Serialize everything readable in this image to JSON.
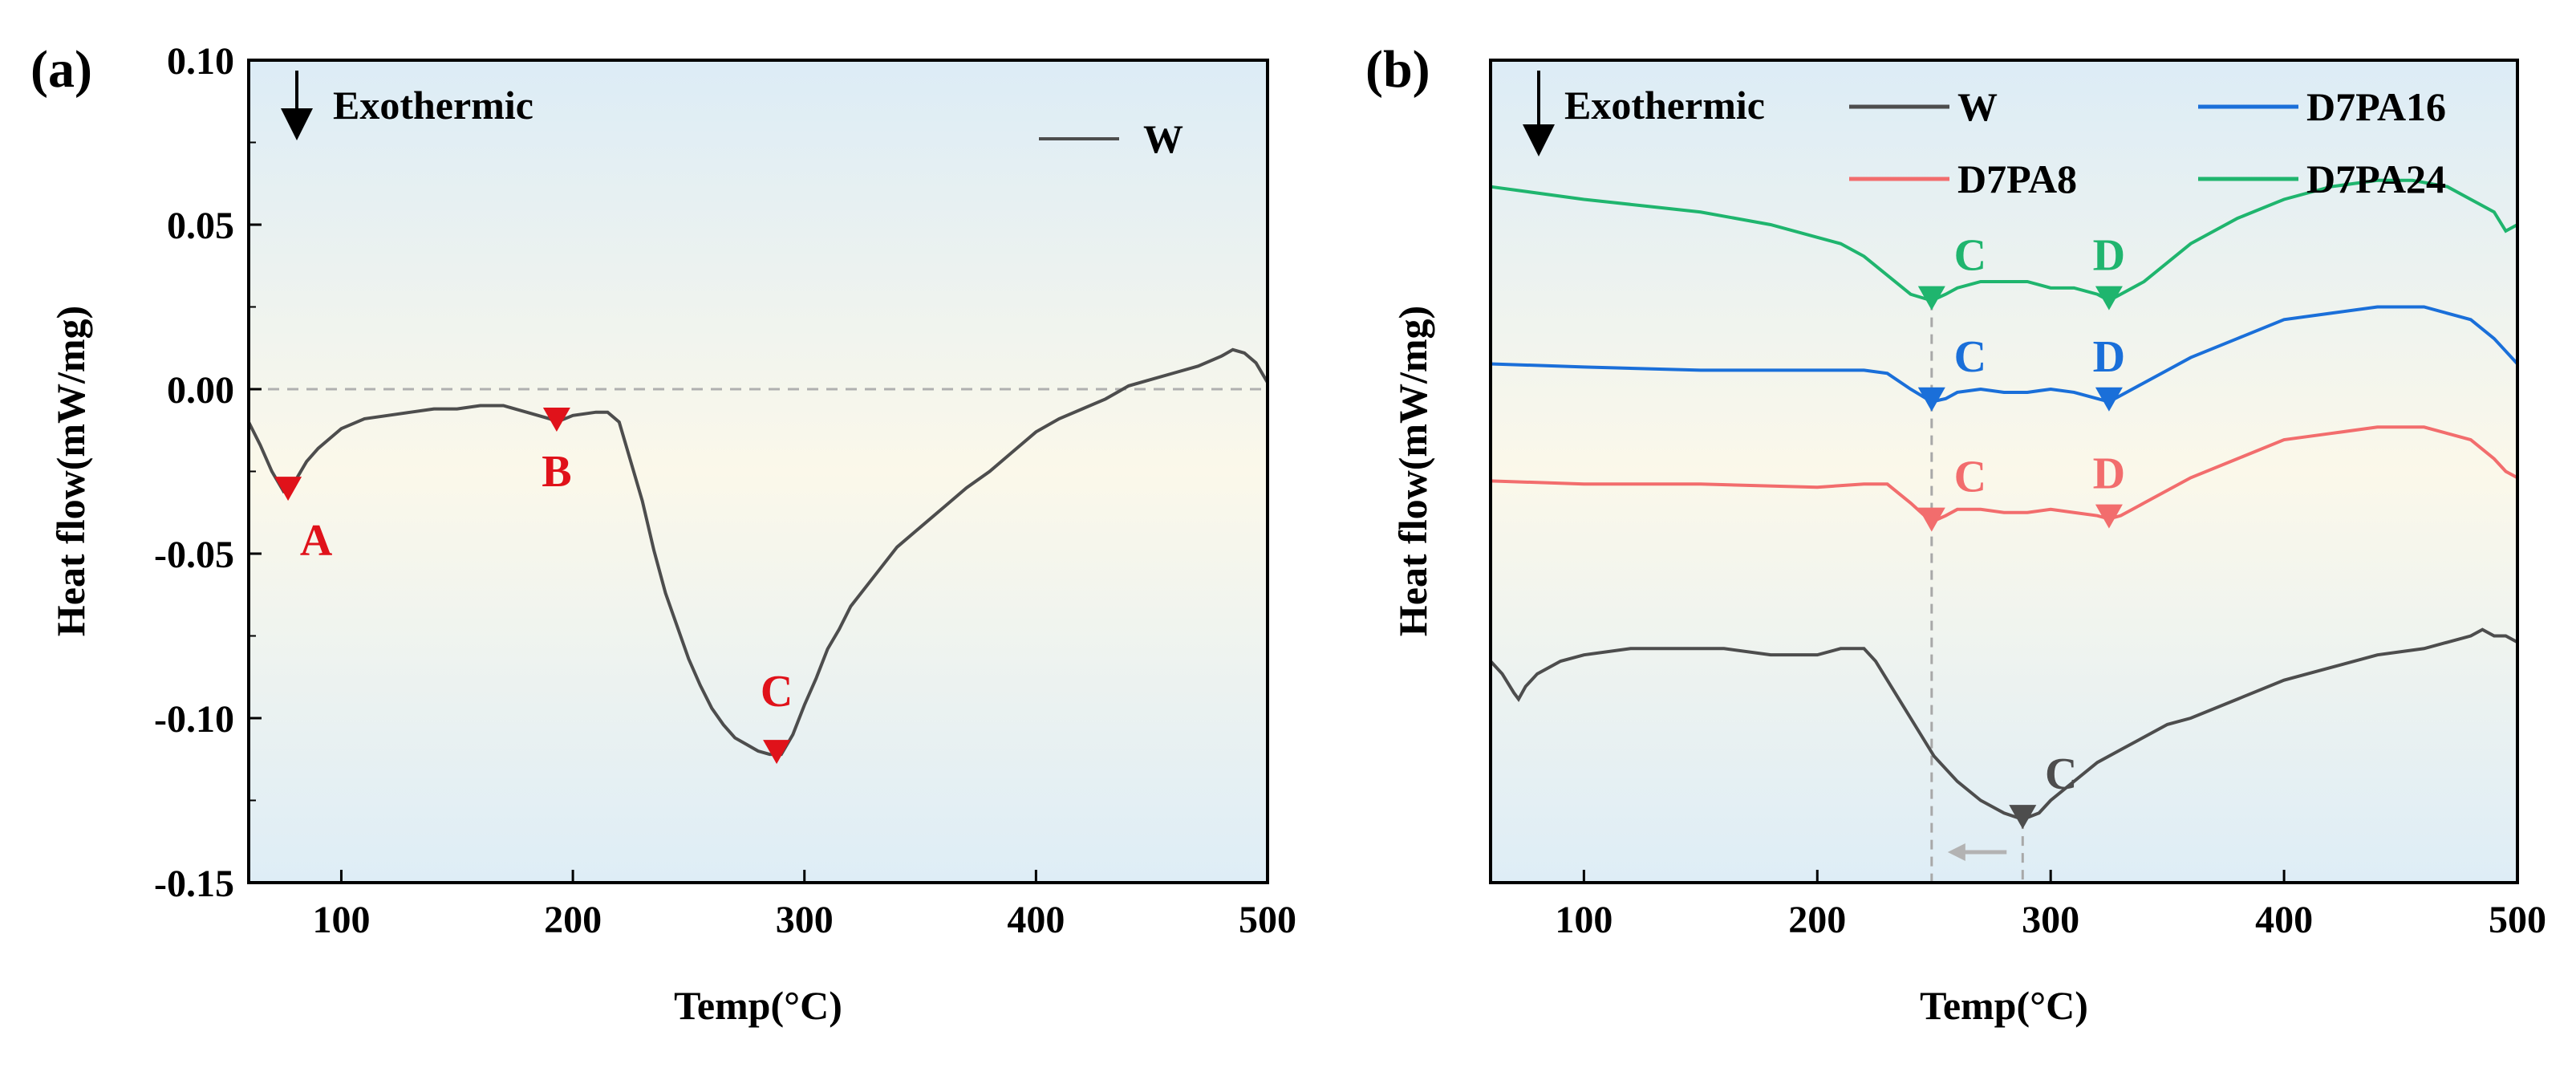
{
  "colors": {
    "W": "#4d4d4d",
    "D7PA8": "#f26d6d",
    "D7PA16": "#1a6fd9",
    "D7PA24": "#1fb56e",
    "peak_marker_a": "#e0121a",
    "shift_arrow": "#b3b3b3"
  },
  "chart_data": [
    {
      "panel_label": "(a)",
      "type": "line",
      "xlabel": "Temp(°C)",
      "ylabel": "Heat flow(mW/mg)",
      "xlim": [
        60,
        500
      ],
      "ylim": [
        -0.15,
        0.1
      ],
      "xticks": [
        "100",
        "200",
        "300",
        "400",
        "500"
      ],
      "yticks": [
        "0.10",
        "0.05",
        "0.00",
        "-0.05",
        "-0.10",
        "-0.15"
      ],
      "annotation": "Exothermic",
      "reference_line_y": 0.0,
      "legend": "top-right",
      "series": [
        {
          "name": "W",
          "color_key": "W",
          "x": [
            60,
            65,
            70,
            75,
            80,
            85,
            90,
            95,
            100,
            110,
            120,
            130,
            140,
            150,
            160,
            170,
            180,
            190,
            193,
            200,
            210,
            215,
            220,
            225,
            230,
            235,
            240,
            245,
            250,
            255,
            260,
            265,
            270,
            275,
            280,
            285,
            290,
            295,
            300,
            305,
            310,
            315,
            320,
            330,
            340,
            350,
            360,
            370,
            380,
            390,
            400,
            410,
            420,
            430,
            440,
            450,
            460,
            470,
            480,
            485,
            490,
            495,
            500
          ],
          "y": [
            -0.01,
            -0.017,
            -0.025,
            -0.031,
            -0.028,
            -0.022,
            -0.018,
            -0.015,
            -0.012,
            -0.009,
            -0.008,
            -0.007,
            -0.006,
            -0.006,
            -0.005,
            -0.005,
            -0.007,
            -0.009,
            -0.01,
            -0.008,
            -0.007,
            -0.007,
            -0.01,
            -0.022,
            -0.034,
            -0.049,
            -0.062,
            -0.072,
            -0.082,
            -0.09,
            -0.097,
            -0.102,
            -0.106,
            -0.108,
            -0.11,
            -0.111,
            -0.111,
            -0.105,
            -0.096,
            -0.088,
            -0.079,
            -0.073,
            -0.066,
            -0.057,
            -0.048,
            -0.042,
            -0.036,
            -0.03,
            -0.025,
            -0.019,
            -0.013,
            -0.009,
            -0.006,
            -0.003,
            0.001,
            0.003,
            0.005,
            0.007,
            0.01,
            0.012,
            0.011,
            0.008,
            0.002
          ]
        }
      ],
      "peaks": [
        {
          "label": "A",
          "x": 77,
          "y": -0.031
        },
        {
          "label": "B",
          "x": 193,
          "y": -0.01
        },
        {
          "label": "C",
          "x": 288,
          "y": -0.111
        }
      ]
    },
    {
      "panel_label": "(b)",
      "type": "line",
      "xlabel": "Temp(°C)",
      "ylabel": "Heat flow(mW/mg)",
      "xlim": [
        60,
        500
      ],
      "xticks": [
        "100",
        "200",
        "300",
        "400",
        "500"
      ],
      "annotation": "Exothermic",
      "legend": "top-right",
      "shift_arrow": {
        "from_x": 288,
        "to_x": 249
      },
      "series": [
        {
          "name": "W",
          "color_key": "W",
          "x": [
            60,
            65,
            70,
            72,
            75,
            80,
            90,
            100,
            120,
            140,
            160,
            180,
            200,
            210,
            220,
            225,
            230,
            240,
            250,
            260,
            270,
            280,
            288,
            295,
            300,
            310,
            320,
            330,
            340,
            350,
            360,
            380,
            400,
            420,
            440,
            460,
            470,
            480,
            485,
            490,
            495,
            500
          ],
          "y": [
            0.23,
            0.21,
            0.18,
            0.17,
            0.19,
            0.21,
            0.23,
            0.24,
            0.25,
            0.25,
            0.25,
            0.24,
            0.24,
            0.25,
            0.25,
            0.23,
            0.2,
            0.14,
            0.08,
            0.04,
            0.01,
            -0.01,
            -0.02,
            -0.01,
            0.01,
            0.04,
            0.07,
            0.09,
            0.11,
            0.13,
            0.14,
            0.17,
            0.2,
            0.22,
            0.24,
            0.25,
            0.26,
            0.27,
            0.28,
            0.27,
            0.27,
            0.26
          ]
        },
        {
          "name": "D7PA8",
          "color_key": "D7PA8",
          "x": [
            60,
            100,
            150,
            200,
            220,
            230,
            240,
            249,
            255,
            260,
            270,
            280,
            290,
            300,
            310,
            320,
            325,
            330,
            340,
            350,
            360,
            380,
            400,
            420,
            440,
            460,
            470,
            480,
            490,
            495,
            500
          ],
          "y": [
            0.515,
            0.51,
            0.51,
            0.505,
            0.51,
            0.51,
            0.48,
            0.45,
            0.46,
            0.47,
            0.47,
            0.465,
            0.465,
            0.47,
            0.465,
            0.46,
            0.455,
            0.46,
            0.48,
            0.5,
            0.52,
            0.55,
            0.58,
            0.59,
            0.6,
            0.6,
            0.59,
            0.58,
            0.55,
            0.53,
            0.52
          ]
        },
        {
          "name": "D7PA16",
          "color_key": "D7PA16",
          "x": [
            60,
            100,
            150,
            200,
            220,
            230,
            240,
            249,
            255,
            260,
            270,
            280,
            290,
            300,
            310,
            320,
            325,
            330,
            340,
            350,
            360,
            380,
            400,
            420,
            440,
            460,
            470,
            480,
            490,
            495,
            500
          ],
          "y": [
            0.7,
            0.695,
            0.69,
            0.69,
            0.69,
            0.685,
            0.66,
            0.64,
            0.645,
            0.655,
            0.66,
            0.655,
            0.655,
            0.66,
            0.655,
            0.645,
            0.64,
            0.65,
            0.67,
            0.69,
            0.71,
            0.74,
            0.77,
            0.78,
            0.79,
            0.79,
            0.78,
            0.77,
            0.74,
            0.72,
            0.7
          ]
        },
        {
          "name": "D7PA24",
          "color_key": "D7PA24",
          "x": [
            60,
            100,
            150,
            180,
            200,
            210,
            220,
            230,
            240,
            249,
            255,
            260,
            270,
            280,
            290,
            300,
            310,
            320,
            325,
            330,
            340,
            350,
            360,
            380,
            400,
            420,
            440,
            455,
            470,
            480,
            490,
            495,
            500
          ],
          "y": [
            0.98,
            0.96,
            0.94,
            0.92,
            0.9,
            0.89,
            0.87,
            0.84,
            0.81,
            0.8,
            0.81,
            0.82,
            0.83,
            0.83,
            0.83,
            0.82,
            0.82,
            0.81,
            0.8,
            0.81,
            0.83,
            0.86,
            0.89,
            0.93,
            0.96,
            0.98,
            0.99,
            0.99,
            0.98,
            0.96,
            0.94,
            0.91,
            0.92
          ]
        }
      ],
      "peaks": [
        {
          "label": "C",
          "series": "D7PA24",
          "x": 249,
          "y": 0.8
        },
        {
          "label": "D",
          "series": "D7PA24",
          "x": 325,
          "y": 0.8
        },
        {
          "label": "C",
          "series": "D7PA16",
          "x": 249,
          "y": 0.64
        },
        {
          "label": "D",
          "series": "D7PA16",
          "x": 325,
          "y": 0.64
        },
        {
          "label": "C",
          "series": "D7PA8",
          "x": 249,
          "y": 0.45
        },
        {
          "label": "D",
          "series": "D7PA8",
          "x": 325,
          "y": 0.455
        },
        {
          "label": "C",
          "series": "W",
          "x": 288,
          "y": -0.02
        }
      ]
    }
  ]
}
